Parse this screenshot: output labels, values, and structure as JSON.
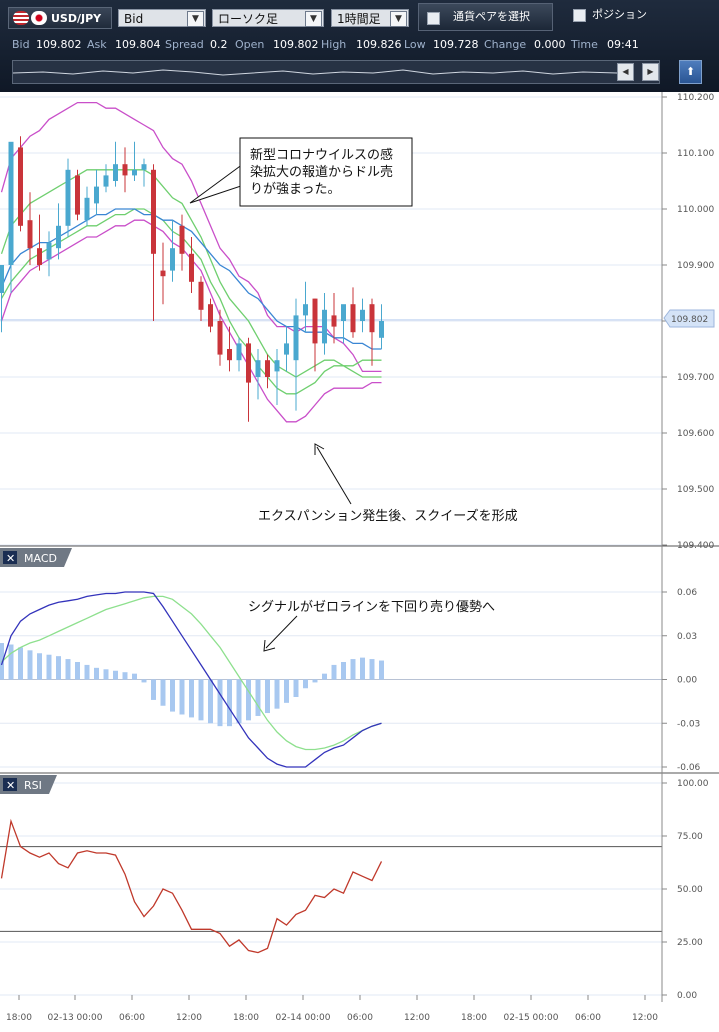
{
  "toolbar": {
    "pair": "USD/JPY",
    "price_type": "Bid",
    "chart_type": "ローソク足",
    "timeframe": "1時間足",
    "pair_select_label": "通貨ペアを選択",
    "position_label": "ポジション"
  },
  "quotes": [
    {
      "label": "Bid",
      "value": "109.802"
    },
    {
      "label": "Ask",
      "value": "109.804"
    },
    {
      "label": "Spread",
      "value": "0.2"
    },
    {
      "label": "Open",
      "value": "109.802"
    },
    {
      "label": "High",
      "value": "109.826"
    },
    {
      "label": "Low",
      "value": "109.728"
    },
    {
      "label": "Change",
      "value": "0.000"
    },
    {
      "label": "Time",
      "value": "09:41"
    }
  ],
  "colors": {
    "up": "#4aa8cf",
    "down": "#c9343a",
    "bb_outer": "#c94fc9",
    "bb_inner": "#6fcf6f",
    "ma": "#3a86d4",
    "macd": "#3333bb",
    "signal": "#8ee08e",
    "hist": "#a8c8f0",
    "rsi": "#c0392b"
  },
  "chart_data": [
    {
      "panel": "price",
      "type": "candlestick",
      "overlays": [
        "Bollinger Bands",
        "Moving Average"
      ],
      "ylim": [
        109.4,
        110.2
      ],
      "yticks": [
        "110.200",
        "110.100",
        "110.000",
        "109.900",
        "109.800",
        "109.700",
        "109.600",
        "109.500",
        "109.400"
      ],
      "current_price": "109.802",
      "candles": [
        [
          109.85,
          109.9,
          109.88,
          109.78
        ],
        [
          109.9,
          110.12,
          110.06,
          109.85
        ],
        [
          110.11,
          109.97,
          110.13,
          109.96
        ],
        [
          109.98,
          109.93,
          110.03,
          109.9
        ],
        [
          109.93,
          109.9,
          109.99,
          109.89
        ],
        [
          109.91,
          109.94,
          109.96,
          109.88
        ],
        [
          109.93,
          109.97,
          110.01,
          109.91
        ],
        [
          109.97,
          110.07,
          110.09,
          109.95
        ],
        [
          110.06,
          109.99,
          110.07,
          109.98
        ],
        [
          109.98,
          110.02,
          110.04,
          109.97
        ],
        [
          110.01,
          110.04,
          110.07,
          109.99
        ],
        [
          110.04,
          110.06,
          110.08,
          110.03
        ],
        [
          110.05,
          110.08,
          110.12,
          110.04
        ],
        [
          110.08,
          110.06,
          110.11,
          110.03
        ],
        [
          110.06,
          110.07,
          110.12,
          110.05
        ],
        [
          110.07,
          110.08,
          110.09,
          110.04
        ],
        [
          110.07,
          109.92,
          110.08,
          109.8
        ],
        [
          109.89,
          109.88,
          109.94,
          109.83
        ],
        [
          109.89,
          109.93,
          109.98,
          109.87
        ],
        [
          109.97,
          109.92,
          109.99,
          109.89
        ],
        [
          109.92,
          109.87,
          109.95,
          109.85
        ],
        [
          109.87,
          109.82,
          109.88,
          109.8
        ],
        [
          109.83,
          109.79,
          109.84,
          109.78
        ],
        [
          109.8,
          109.74,
          109.82,
          109.72
        ],
        [
          109.75,
          109.73,
          109.79,
          109.71
        ],
        [
          109.73,
          109.76,
          109.77,
          109.71
        ],
        [
          109.76,
          109.69,
          109.77,
          109.62
        ],
        [
          109.7,
          109.73,
          109.75,
          109.66
        ],
        [
          109.73,
          109.7,
          109.74,
          109.68
        ],
        [
          109.71,
          109.73,
          109.75,
          109.65
        ],
        [
          109.74,
          109.76,
          109.79,
          109.71
        ],
        [
          109.73,
          109.81,
          109.84,
          109.64
        ],
        [
          109.81,
          109.83,
          109.87,
          109.78
        ],
        [
          109.84,
          109.76,
          109.84,
          109.71
        ],
        [
          109.76,
          109.82,
          109.85,
          109.74
        ],
        [
          109.81,
          109.79,
          109.85,
          109.76
        ],
        [
          109.8,
          109.83,
          109.82,
          109.76
        ],
        [
          109.83,
          109.78,
          109.86,
          109.77
        ],
        [
          109.8,
          109.82,
          109.84,
          109.78
        ],
        [
          109.83,
          109.78,
          109.84,
          109.72
        ],
        [
          109.77,
          109.8,
          109.83,
          109.75
        ]
      ],
      "bb_upper": [
        110.03,
        110.09,
        110.11,
        110.13,
        110.14,
        110.16,
        110.17,
        110.18,
        110.19,
        110.19,
        110.19,
        110.18,
        110.18,
        110.17,
        110.16,
        110.15,
        110.14,
        110.11,
        110.09,
        110.08,
        110.05,
        110.01,
        109.97,
        109.93,
        109.91,
        109.88,
        109.87,
        109.85,
        109.81,
        109.79,
        109.79,
        109.78,
        109.79,
        109.79,
        109.79,
        109.77,
        109.76,
        109.74,
        109.71,
        109.71,
        109.71
      ],
      "bb_lower": [
        109.8,
        109.85,
        109.87,
        109.89,
        109.9,
        109.91,
        109.92,
        109.93,
        109.94,
        109.95,
        109.95,
        109.96,
        109.97,
        109.97,
        109.98,
        109.98,
        109.97,
        109.96,
        109.94,
        109.93,
        109.91,
        109.89,
        109.85,
        109.81,
        109.78,
        109.75,
        109.72,
        109.69,
        109.66,
        109.64,
        109.62,
        109.62,
        109.63,
        109.65,
        109.67,
        109.68,
        109.68,
        109.68,
        109.68,
        109.69,
        109.69
      ],
      "bb_inner_upper": [
        109.92,
        109.97,
        109.99,
        110.01,
        110.02,
        110.03,
        110.04,
        110.05,
        110.06,
        110.07,
        110.07,
        110.07,
        110.07,
        110.07,
        110.07,
        110.07,
        110.06,
        110.04,
        110.02,
        110.01,
        109.98,
        109.95,
        109.91,
        109.87,
        109.84,
        109.82,
        109.8,
        109.77,
        109.74,
        109.72,
        109.71,
        109.7,
        109.71,
        109.72,
        109.73,
        109.73,
        109.72,
        109.71,
        109.7,
        109.7,
        109.7
      ],
      "bb_inner_lower": [
        109.84,
        109.87,
        109.89,
        109.91,
        109.92,
        109.93,
        109.94,
        109.95,
        109.96,
        109.97,
        109.97,
        109.98,
        109.99,
        109.99,
        110.0,
        110.0,
        109.99,
        109.98,
        109.96,
        109.95,
        109.93,
        109.91,
        109.87,
        109.84,
        109.8,
        109.77,
        109.75,
        109.72,
        109.7,
        109.68,
        109.67,
        109.67,
        109.68,
        109.69,
        109.71,
        109.72,
        109.72,
        109.72,
        109.73,
        109.73,
        109.73
      ],
      "ma": [
        109.86,
        109.9,
        109.92,
        109.93,
        109.94,
        109.94,
        109.95,
        109.96,
        109.97,
        109.98,
        109.99,
        109.99,
        110.0,
        110.0,
        110.0,
        109.99,
        109.99,
        109.98,
        109.98,
        109.97,
        109.96,
        109.94,
        109.92,
        109.9,
        109.89,
        109.87,
        109.85,
        109.84,
        109.82,
        109.8,
        109.79,
        109.79,
        109.78,
        109.78,
        109.78,
        109.77,
        109.77,
        109.76,
        109.76,
        109.75,
        109.75
      ],
      "annotations": [
        "新型コロナウイルスの感\n染拡大の報道からドル売\nりが強まった。",
        "エクスパンション発生後、スクイーズを形成"
      ]
    },
    {
      "panel": "MACD",
      "type": "line",
      "title": "MACD",
      "ylim": [
        -0.06,
        0.06
      ],
      "yticks": [
        "0.06",
        "0.03",
        "0.00",
        "-0.03",
        "-0.06"
      ],
      "macd": [
        0.01,
        0.03,
        0.04,
        0.045,
        0.048,
        0.051,
        0.053,
        0.054,
        0.055,
        0.057,
        0.058,
        0.059,
        0.059,
        0.06,
        0.06,
        0.06,
        0.059,
        0.05,
        0.04,
        0.03,
        0.02,
        0.01,
        0.0,
        -0.01,
        -0.02,
        -0.03,
        -0.04,
        -0.047,
        -0.054,
        -0.058,
        -0.06,
        -0.06,
        -0.06,
        -0.055,
        -0.05,
        -0.047,
        -0.045,
        -0.04,
        -0.035,
        -0.032,
        -0.03
      ],
      "signal": [
        0.012,
        0.018,
        0.022,
        0.025,
        0.027,
        0.03,
        0.033,
        0.036,
        0.039,
        0.042,
        0.045,
        0.048,
        0.05,
        0.052,
        0.054,
        0.056,
        0.057,
        0.057,
        0.055,
        0.05,
        0.045,
        0.038,
        0.03,
        0.022,
        0.012,
        0.002,
        -0.008,
        -0.018,
        -0.028,
        -0.036,
        -0.042,
        -0.046,
        -0.048,
        -0.048,
        -0.047,
        -0.045,
        -0.042,
        -0.038,
        -0.035,
        -0.032,
        -0.03
      ],
      "histogram": [
        0.025,
        0.024,
        0.022,
        0.02,
        0.018,
        0.017,
        0.016,
        0.014,
        0.012,
        0.01,
        0.008,
        0.007,
        0.006,
        0.005,
        0.004,
        -0.002,
        -0.014,
        -0.018,
        -0.022,
        -0.024,
        -0.026,
        -0.028,
        -0.03,
        -0.032,
        -0.032,
        -0.03,
        -0.028,
        -0.025,
        -0.023,
        -0.02,
        -0.016,
        -0.012,
        -0.006,
        -0.002,
        0.004,
        0.01,
        0.012,
        0.014,
        0.015,
        0.014,
        0.013
      ],
      "annotation": "シグナルがゼロラインを下回り売り優勢へ"
    },
    {
      "panel": "RSI",
      "type": "line",
      "title": "RSI",
      "ylim": [
        0,
        100
      ],
      "yticks": [
        "100.00",
        "75.00",
        "50.00",
        "25.00",
        "0.00"
      ],
      "levels": [
        70,
        30
      ],
      "values": [
        55,
        82,
        70,
        67,
        65,
        67,
        62,
        60,
        67,
        68,
        67,
        67,
        66,
        57,
        44,
        37,
        42,
        50,
        48,
        40,
        31,
        31,
        31,
        29,
        23,
        26,
        21,
        20,
        22,
        36,
        33,
        38,
        40,
        47,
        46,
        50,
        48,
        58,
        56,
        54,
        63
      ]
    }
  ],
  "x_ticks": [
    "18:00",
    "02-13 00:00",
    "06:00",
    "12:00",
    "18:00",
    "02-14 00:00",
    "06:00",
    "12:00",
    "18:00",
    "02-15 00:00",
    "06:00",
    "12:00"
  ]
}
